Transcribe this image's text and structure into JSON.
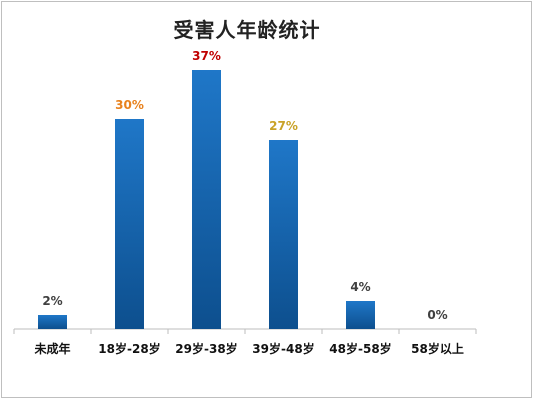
{
  "chart_data": {
    "type": "bar",
    "title": "受害人年龄统计",
    "categories": [
      "未成年",
      "18岁-28岁",
      "29岁-38岁",
      "39岁-48岁",
      "48岁-58岁",
      "58岁以上"
    ],
    "values": [
      2,
      30,
      37,
      27,
      4,
      0
    ],
    "value_labels": [
      "2%",
      "30%",
      "37%",
      "27%",
      "4%",
      "0%"
    ],
    "label_colors": [
      "#404040",
      "#e8821e",
      "#c00000",
      "#c9a227",
      "#404040",
      "#404040"
    ],
    "ylim": [
      0,
      40
    ],
    "grid": false,
    "legend": "none",
    "bar_color": "#1f77c8",
    "bar_color_dark": "#0d4f8e"
  }
}
